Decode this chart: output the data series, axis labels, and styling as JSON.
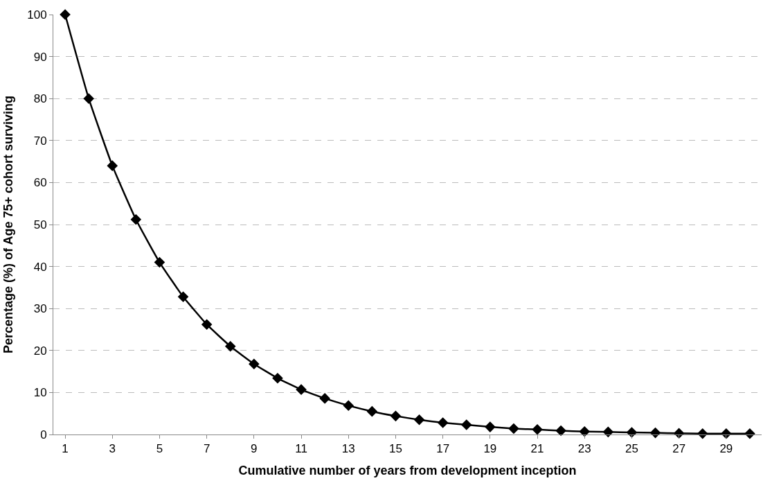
{
  "chart_data": {
    "type": "line",
    "x": [
      1,
      2,
      3,
      4,
      5,
      6,
      7,
      8,
      9,
      10,
      11,
      12,
      13,
      14,
      15,
      16,
      17,
      18,
      19,
      20,
      21,
      22,
      23,
      24,
      25,
      26,
      27,
      28,
      29,
      30
    ],
    "values": [
      100,
      80,
      64,
      51.2,
      41,
      32.8,
      26.2,
      21,
      16.8,
      13.4,
      10.7,
      8.6,
      6.9,
      5.5,
      4.4,
      3.5,
      2.8,
      2.3,
      1.8,
      1.4,
      1.2,
      0.9,
      0.7,
      0.6,
      0.5,
      0.4,
      0.3,
      0.2,
      0.2,
      0.2
    ],
    "color": "#000000",
    "xlabel": "Cumulative number of years from development inception",
    "ylabel": "Percentage (%) of Age 75+ cohort surviving",
    "xlim": [
      0.5,
      30.5
    ],
    "xticks": [
      1,
      3,
      5,
      7,
      9,
      11,
      13,
      15,
      17,
      19,
      21,
      23,
      25,
      27,
      29
    ],
    "ylim": [
      0,
      100
    ],
    "yticks": [
      0,
      10,
      20,
      30,
      40,
      50,
      60,
      70,
      80,
      90,
      100
    ],
    "grid": "y",
    "marker": "diamond",
    "line_style": "solid"
  }
}
